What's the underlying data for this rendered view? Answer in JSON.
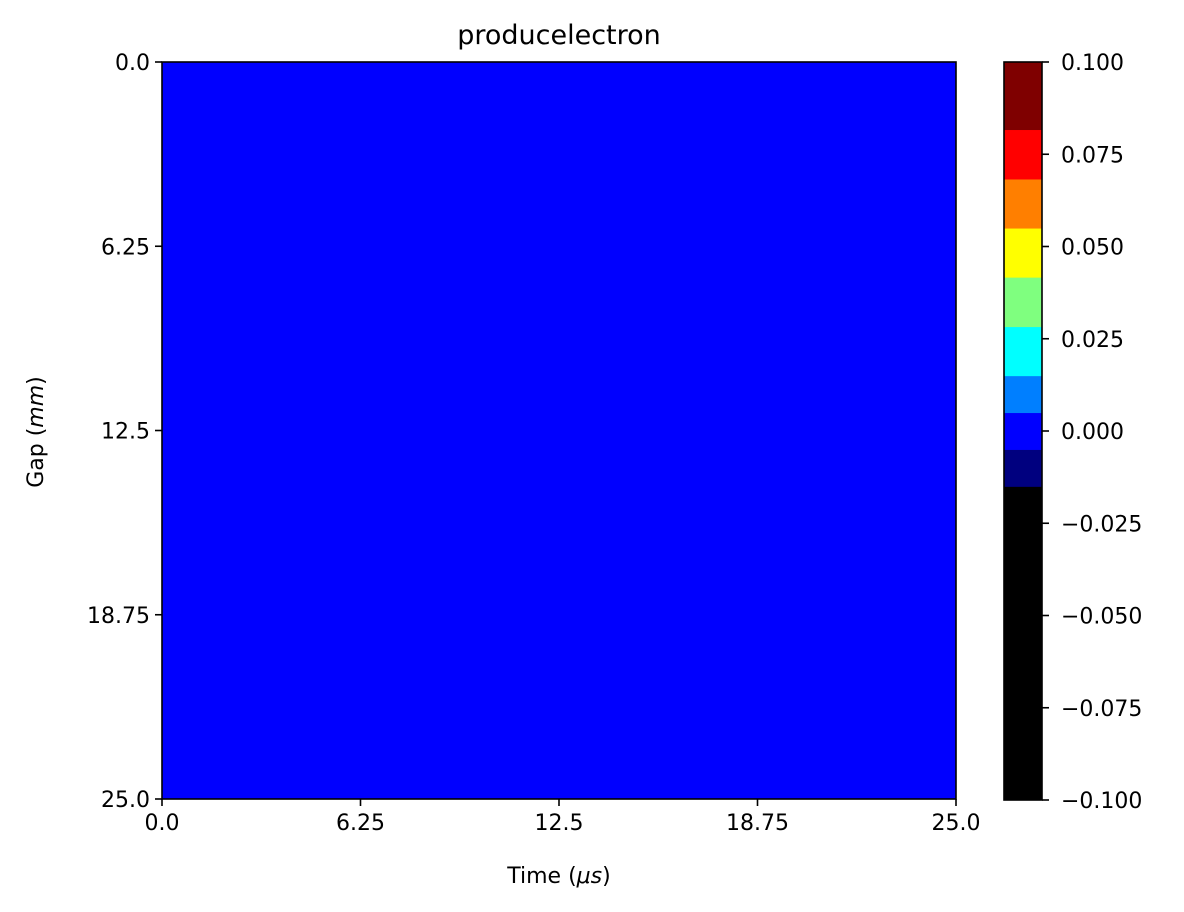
{
  "chart_data": {
    "type": "heatmap",
    "title": "producelectron",
    "xlabel": {
      "prefix": "Time (",
      "symbol": "μs",
      "suffix": ")"
    },
    "ylabel": {
      "prefix": "Gap (",
      "symbol": "mm",
      "suffix": ")"
    },
    "xlim": [
      0.0,
      25.0
    ],
    "ylim": [
      25.0,
      0.0
    ],
    "y_inverted": true,
    "xticks": [
      "0.0",
      "6.25",
      "12.5",
      "18.75",
      "25.0"
    ],
    "yticks": [
      "0.0",
      "6.25",
      "12.5",
      "18.75",
      "25.0"
    ],
    "xtick_values": [
      0.0,
      6.25,
      12.5,
      18.75,
      25.0
    ],
    "ytick_values": [
      0.0,
      6.25,
      12.5,
      18.75,
      25.0
    ],
    "z_uniform_value": 0.0,
    "heatmap_color": "#0000ff",
    "colormap": "jet",
    "colorbar": {
      "range": [
        -0.1,
        0.1
      ],
      "ticks": [
        "−0.100",
        "−0.075",
        "−0.050",
        "−0.025",
        "0.000",
        "0.025",
        "0.050",
        "0.075",
        "0.100"
      ],
      "tick_values": [
        -0.1,
        -0.075,
        -0.05,
        -0.025,
        0.0,
        0.025,
        0.05,
        0.075,
        0.1
      ],
      "bands": [
        {
          "from": -0.1,
          "to": -0.015,
          "color": "#000000"
        },
        {
          "from": -0.015,
          "to": -0.005,
          "color": "#00007f"
        },
        {
          "from": -0.005,
          "to": 0.005,
          "color": "#0000ff"
        },
        {
          "from": 0.005,
          "to": 0.015,
          "color": "#007fff"
        },
        {
          "from": 0.015,
          "to": 0.0283,
          "color": "#00ffff"
        },
        {
          "from": 0.0283,
          "to": 0.0417,
          "color": "#7fff7f"
        },
        {
          "from": 0.0417,
          "to": 0.055,
          "color": "#ffff00"
        },
        {
          "from": 0.055,
          "to": 0.0683,
          "color": "#ff7f00"
        },
        {
          "from": 0.0683,
          "to": 0.0817,
          "color": "#ff0000"
        },
        {
          "from": 0.0817,
          "to": 0.1,
          "color": "#7f0000"
        }
      ]
    }
  }
}
